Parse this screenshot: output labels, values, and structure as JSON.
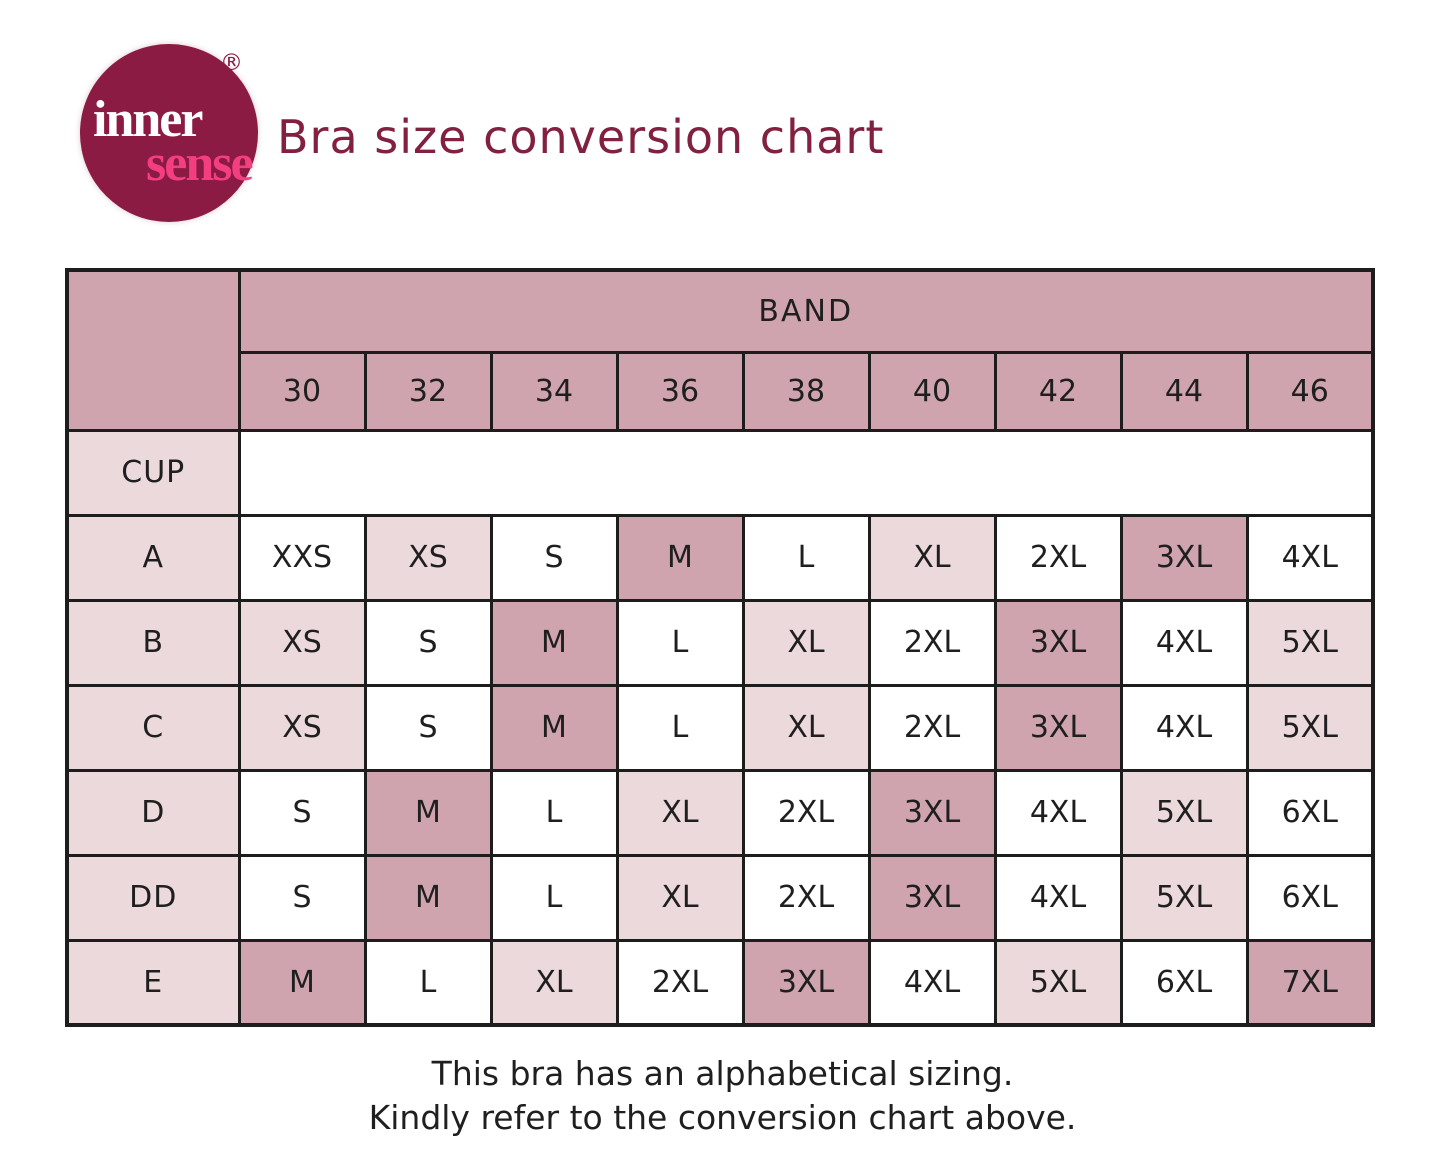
{
  "logo": {
    "inner": "inner",
    "sense": "sense",
    "registered": "®"
  },
  "header": {
    "title": "Bra size conversion chart"
  },
  "chart_data": {
    "type": "table",
    "title": "Bra size conversion chart",
    "column_group_label": "BAND",
    "row_group_label": "CUP",
    "band_sizes": [
      "30",
      "32",
      "34",
      "36",
      "38",
      "40",
      "42",
      "44",
      "46"
    ],
    "shade_legend": {
      "white": "#ffffff",
      "pink": "#ecd9dc",
      "rose": "#cfa4ae"
    },
    "rows": [
      {
        "cup": "A",
        "sizes": [
          "XXS",
          "XS",
          "S",
          "M",
          "L",
          "XL",
          "2XL",
          "3XL",
          "4XL"
        ],
        "shades": [
          "white",
          "pink",
          "white",
          "rose",
          "white",
          "pink",
          "white",
          "rose",
          "white"
        ]
      },
      {
        "cup": "B",
        "sizes": [
          "XS",
          "S",
          "M",
          "L",
          "XL",
          "2XL",
          "3XL",
          "4XL",
          "5XL"
        ],
        "shades": [
          "pink",
          "white",
          "rose",
          "white",
          "pink",
          "white",
          "rose",
          "white",
          "pink"
        ]
      },
      {
        "cup": "C",
        "sizes": [
          "XS",
          "S",
          "M",
          "L",
          "XL",
          "2XL",
          "3XL",
          "4XL",
          "5XL"
        ],
        "shades": [
          "pink",
          "white",
          "rose",
          "white",
          "pink",
          "white",
          "rose",
          "white",
          "pink"
        ]
      },
      {
        "cup": "D",
        "sizes": [
          "S",
          "M",
          "L",
          "XL",
          "2XL",
          "3XL",
          "4XL",
          "5XL",
          "6XL"
        ],
        "shades": [
          "white",
          "rose",
          "white",
          "pink",
          "white",
          "rose",
          "white",
          "pink",
          "white"
        ]
      },
      {
        "cup": "DD",
        "sizes": [
          "S",
          "M",
          "L",
          "XL",
          "2XL",
          "3XL",
          "4XL",
          "5XL",
          "6XL"
        ],
        "shades": [
          "white",
          "rose",
          "white",
          "pink",
          "white",
          "rose",
          "white",
          "pink",
          "white"
        ]
      },
      {
        "cup": "E",
        "sizes": [
          "M",
          "L",
          "XL",
          "2XL",
          "3XL",
          "4XL",
          "5XL",
          "6XL",
          "7XL"
        ],
        "shades": [
          "rose",
          "white",
          "pink",
          "white",
          "rose",
          "white",
          "pink",
          "white",
          "rose"
        ]
      }
    ]
  },
  "footer": {
    "line1": "This bra has an alphabetical sizing.",
    "line2": "Kindly refer to the conversion chart above."
  },
  "colors": {
    "title_maroon": "#82203f",
    "logo_circle": "#8b1b43",
    "logo_sense_pink": "#f33e80",
    "header_rose": "#cfa4ae",
    "cell_light_pink": "#ecd9dc",
    "cell_white": "#ffffff",
    "grid_border": "#1d1d1d"
  }
}
